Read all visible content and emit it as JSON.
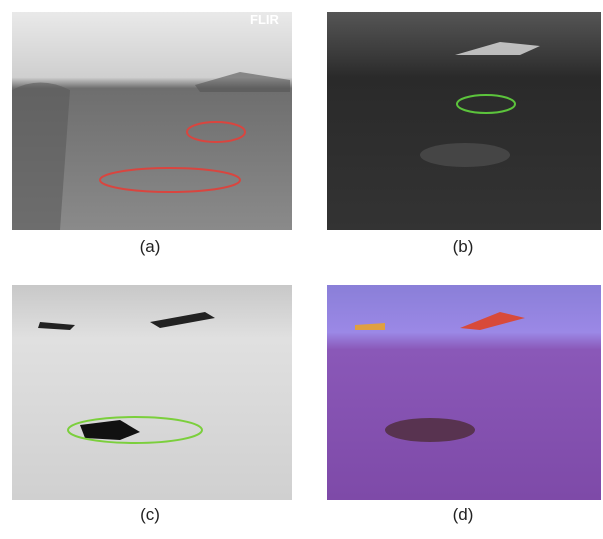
{
  "panels": [
    {
      "label": "(a)",
      "watermark": "FLIR"
    },
    {
      "label": "(b)"
    },
    {
      "label": "(c)"
    },
    {
      "label": "(d)"
    }
  ]
}
